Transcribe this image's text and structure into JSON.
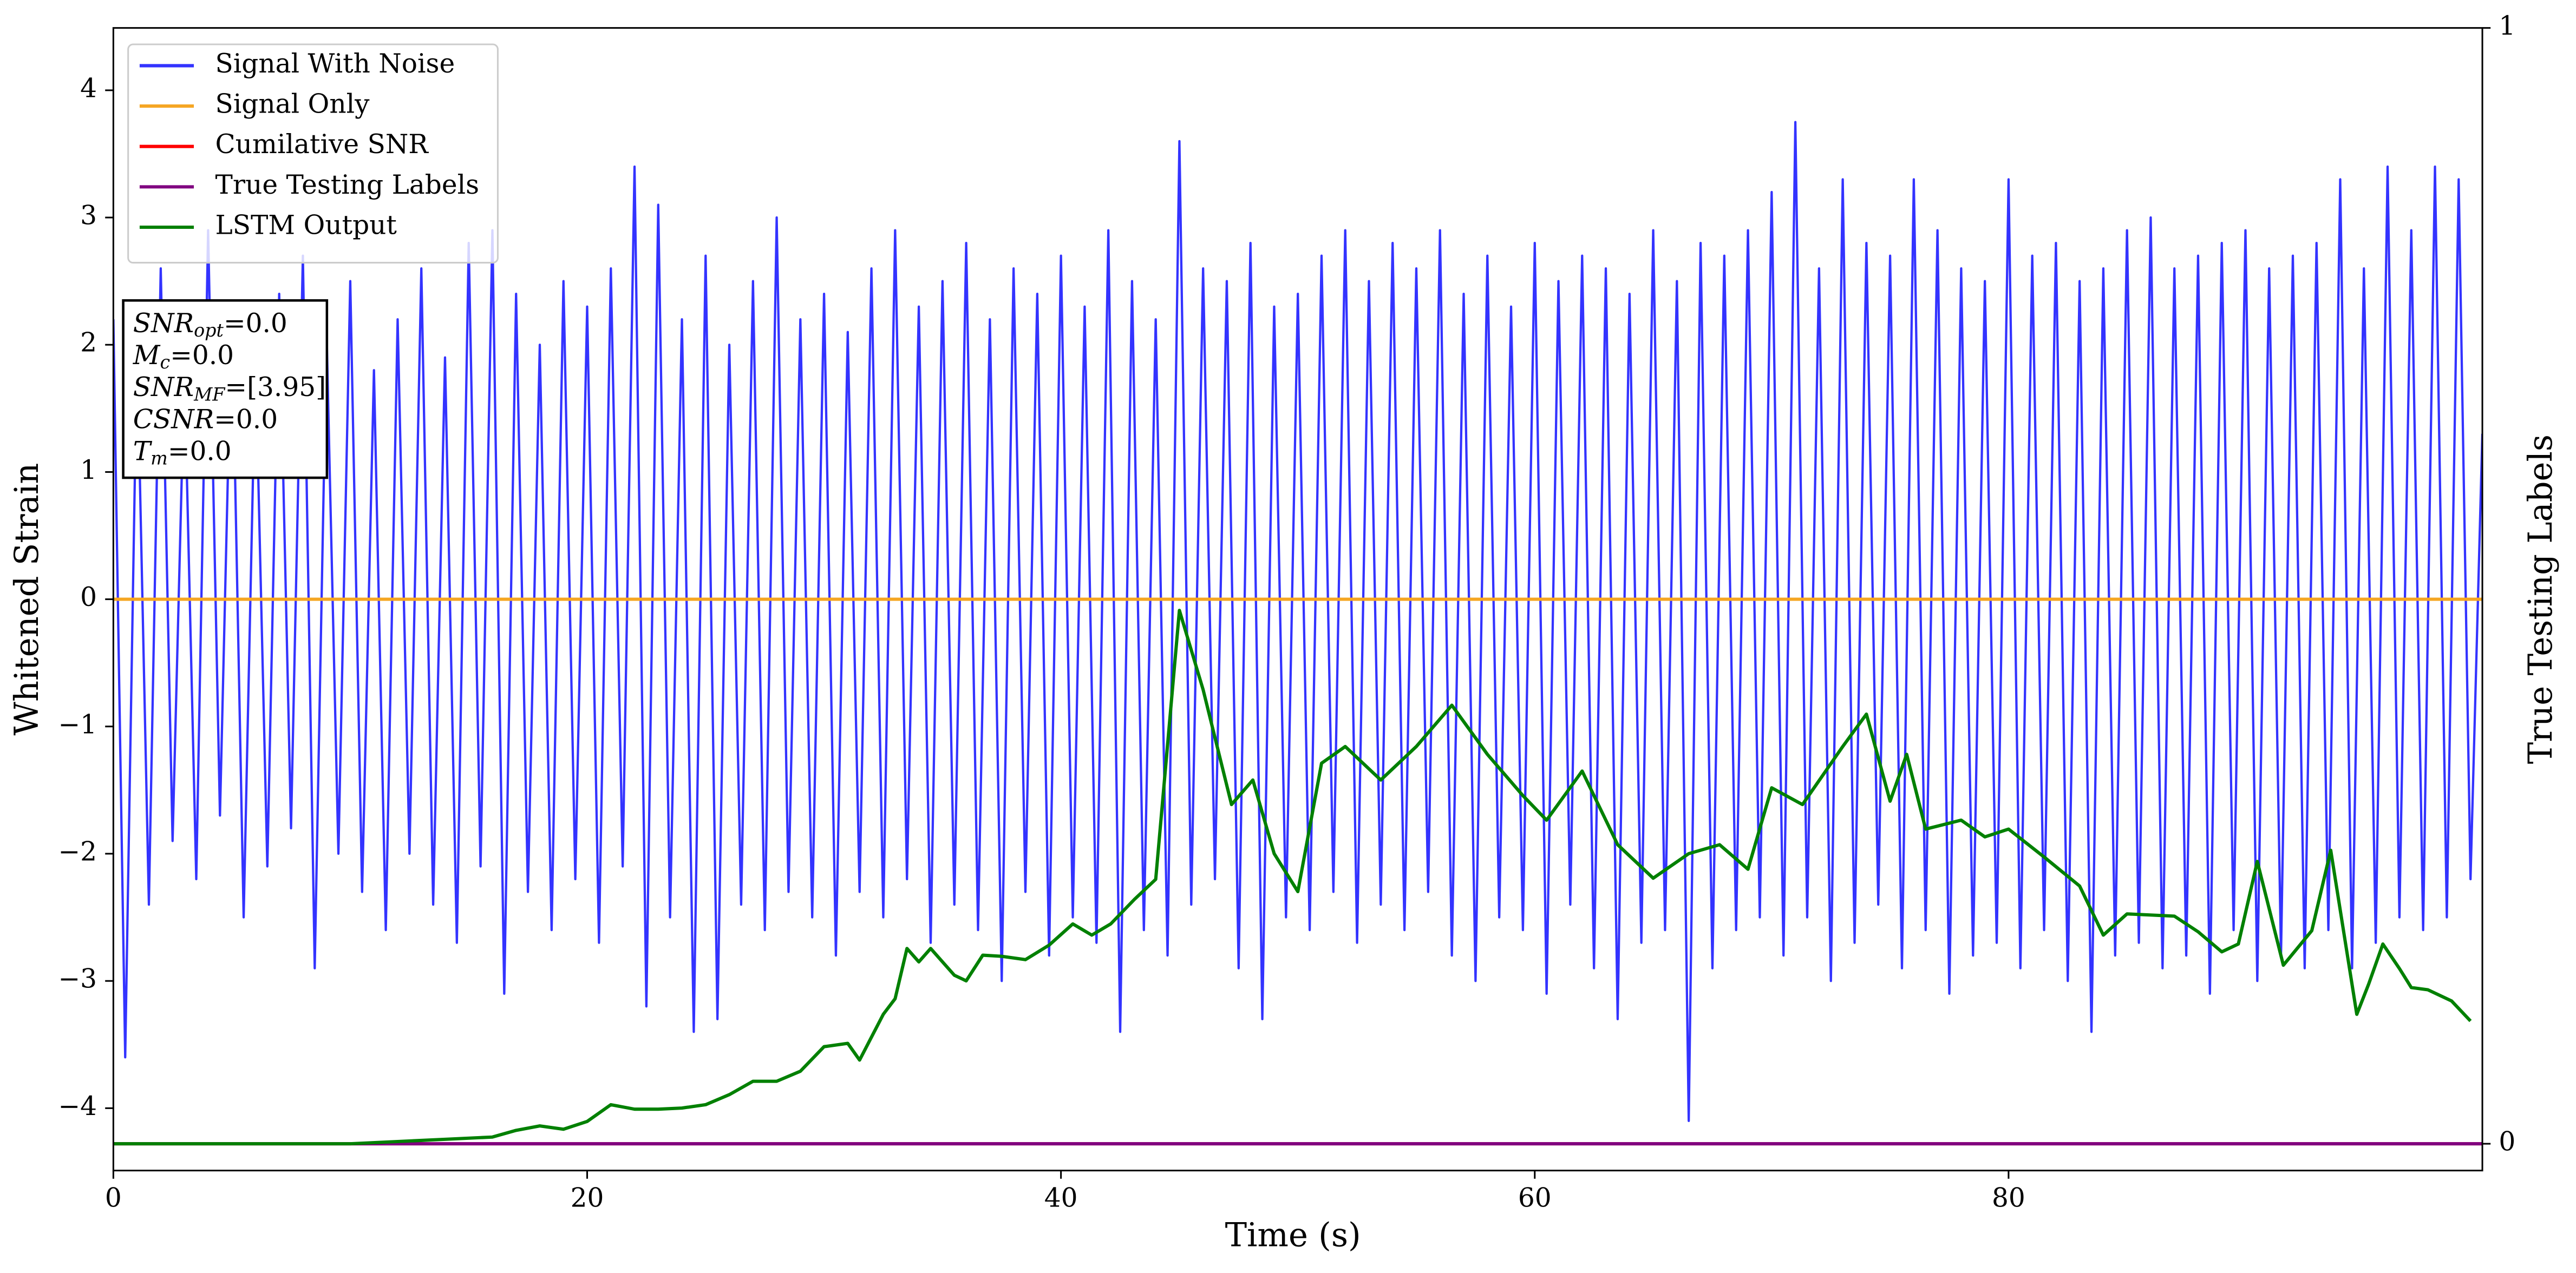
{
  "chart_data": {
    "type": "line",
    "xlabel": "Time (s)",
    "ylabel": "Whitened Strain",
    "y2label": "True Testing Labels",
    "xlim": [
      0,
      100
    ],
    "xticks": [
      0,
      20,
      40,
      60,
      80
    ],
    "ylim": [
      -4.49,
      4.49
    ],
    "yticks": [
      {
        "value": -4,
        "label": "−4"
      },
      {
        "value": -3,
        "label": "−3"
      },
      {
        "value": -2,
        "label": "−2"
      },
      {
        "value": -1,
        "label": "−1"
      },
      0,
      1,
      2,
      3,
      4
    ],
    "y2lim": [
      -0.024,
      1
    ],
    "y2ticks": [
      0,
      1
    ],
    "grid": false,
    "legend": "upper left",
    "annotation": [
      {
        "symbol": "SNR",
        "subscript": "opt",
        "text": "=0.0"
      },
      {
        "symbol": "M",
        "subscript": "c",
        "text": "=0.0"
      },
      {
        "symbol": "SNR",
        "subscript": "MF",
        "text": "=[3.95]"
      },
      {
        "symbol": "CSNR",
        "text": "=0.0"
      },
      {
        "symbol": "T",
        "subscript": "m",
        "text": "=0.0"
      }
    ],
    "series": [
      {
        "name": "Signal With Noise",
        "color": "#3333ff",
        "x": [
          0,
          0.5,
          1,
          1.5,
          2,
          2.5,
          3,
          3.5,
          4,
          4.5,
          5,
          5.5,
          6,
          6.5,
          7,
          7.5,
          8,
          8.5,
          9,
          9.5,
          10,
          10.5,
          11,
          11.5,
          12,
          12.5,
          13,
          13.5,
          14,
          14.5,
          15,
          15.5,
          16,
          16.5,
          17,
          17.5,
          18,
          18.5,
          19,
          19.5,
          20,
          20.5,
          21,
          21.5,
          22,
          22.5,
          23,
          23.5,
          24,
          24.5,
          25,
          25.5,
          26,
          26.5,
          27,
          27.5,
          28,
          28.5,
          29,
          29.5,
          30,
          30.5,
          31,
          31.5,
          32,
          32.5,
          33,
          33.5,
          34,
          34.5,
          35,
          35.5,
          36,
          36.5,
          37,
          37.5,
          38,
          38.5,
          39,
          39.5,
          40,
          40.5,
          41,
          41.5,
          42,
          42.5,
          43,
          43.5,
          44,
          44.5,
          45,
          45.5,
          46,
          46.5,
          47,
          47.5,
          48,
          48.5,
          49,
          49.5,
          50,
          50.5,
          51,
          51.5,
          52,
          52.5,
          53,
          53.5,
          54,
          54.5,
          55,
          55.5,
          56,
          56.5,
          57,
          57.5,
          58,
          58.5,
          59,
          59.5,
          60,
          60.5,
          61,
          61.5,
          62,
          62.5,
          63,
          63.5,
          64,
          64.5,
          65,
          65.5,
          66,
          66.5,
          67,
          67.5,
          68,
          68.5,
          69,
          69.5,
          70,
          70.5,
          71,
          71.5,
          72,
          72.5,
          73,
          73.5,
          74,
          74.5,
          75,
          75.5,
          76,
          76.5,
          77,
          77.5,
          78,
          78.5,
          79,
          79.5,
          80,
          80.5,
          81,
          81.5,
          82,
          82.5,
          83,
          83.5,
          84,
          84.5,
          85,
          85.5,
          86,
          86.5,
          87,
          87.5,
          88,
          88.5,
          89,
          89.5,
          90,
          90.5,
          91,
          91.5,
          92,
          92.5,
          93,
          93.5,
          94,
          94.5,
          95,
          95.5,
          96,
          96.5,
          97,
          97.5,
          98,
          98.5,
          99,
          99.5,
          100
        ],
        "values": [
          2.2,
          -3.6,
          2.0,
          -2.4,
          2.6,
          -1.9,
          1.8,
          -2.2,
          2.9,
          -1.7,
          2.3,
          -2.5,
          1.9,
          -2.1,
          2.4,
          -1.8,
          2.7,
          -2.9,
          2.1,
          -2.0,
          2.5,
          -2.3,
          1.8,
          -2.6,
          2.2,
          -2.0,
          2.6,
          -2.4,
          1.9,
          -2.7,
          2.8,
          -2.1,
          2.9,
          -3.1,
          2.4,
          -2.3,
          2.0,
          -2.6,
          2.5,
          -2.2,
          2.3,
          -2.7,
          2.6,
          -2.1,
          3.4,
          -3.2,
          3.1,
          -2.5,
          2.2,
          -3.4,
          2.7,
          -3.3,
          2.0,
          -2.4,
          2.5,
          -2.6,
          3.0,
          -2.3,
          2.2,
          -2.5,
          2.4,
          -2.8,
          2.1,
          -2.3,
          2.6,
          -2.5,
          2.9,
          -2.2,
          2.3,
          -2.7,
          2.5,
          -2.4,
          2.8,
          -2.6,
          2.2,
          -3.0,
          2.6,
          -2.3,
          2.4,
          -2.8,
          2.7,
          -2.5,
          2.3,
          -2.7,
          2.9,
          -3.4,
          2.5,
          -2.6,
          2.2,
          -2.8,
          3.6,
          -2.4,
          2.6,
          -2.2,
          2.5,
          -2.9,
          2.8,
          -3.3,
          2.3,
          -2.5,
          2.4,
          -2.6,
          2.7,
          -2.3,
          2.9,
          -2.7,
          2.5,
          -2.4,
          2.8,
          -2.6,
          2.6,
          -2.3,
          2.9,
          -2.8,
          2.4,
          -3.0,
          2.7,
          -2.5,
          2.3,
          -2.6,
          2.8,
          -3.1,
          2.5,
          -2.4,
          2.7,
          -2.9,
          2.6,
          -3.3,
          2.4,
          -2.7,
          2.9,
          -2.6,
          2.5,
          -4.1,
          2.8,
          -2.9,
          2.7,
          -2.6,
          2.9,
          -2.5,
          3.2,
          -2.8,
          3.75,
          -2.5,
          2.6,
          -3.0,
          3.3,
          -2.7,
          2.8,
          -2.4,
          2.7,
          -2.9,
          3.3,
          -2.6,
          2.9,
          -3.1,
          2.6,
          -2.8,
          2.5,
          -2.7,
          3.3,
          -2.9,
          2.7,
          -2.6,
          2.8,
          -3.0,
          2.5,
          -3.4,
          2.6,
          -2.8,
          2.9,
          -2.7,
          3.0,
          -2.9,
          2.6,
          -2.8,
          2.7,
          -3.1,
          2.8,
          -2.6,
          2.9,
          -3.0,
          2.6,
          -2.8,
          2.7,
          -2.9,
          2.8,
          -2.6,
          3.3,
          -2.9,
          2.6,
          -2.7,
          3.4,
          -2.5,
          2.9,
          -2.6,
          3.4,
          -2.5,
          3.3,
          -2.2,
          1.3
        ]
      },
      {
        "name": "Signal Only",
        "color": "#f5a623",
        "x": [
          0,
          100
        ],
        "values": [
          0,
          0
        ]
      },
      {
        "name": "Cumilative SNR",
        "color": "#ff0000",
        "axis": "y2",
        "x": [
          0,
          100
        ],
        "values": [
          0,
          0
        ]
      },
      {
        "name": "True Testing Labels",
        "color": "#800080",
        "axis": "y2",
        "x": [
          0,
          100
        ],
        "values": [
          0,
          0
        ]
      },
      {
        "name": "LSTM Output",
        "color": "#008000",
        "axis": "y2",
        "x": [
          0,
          5,
          10,
          12,
          14,
          16,
          17,
          18,
          19,
          20,
          21,
          22,
          23,
          24,
          25,
          26,
          27,
          28,
          29,
          30,
          31,
          31.5,
          32.5,
          33,
          33.5,
          34,
          34.5,
          35.5,
          36,
          36.7,
          37.5,
          38.5,
          39.5,
          40.5,
          41.3,
          42.1,
          43.1,
          44,
          45,
          46,
          47.2,
          48.1,
          49,
          50,
          51,
          52,
          53.5,
          55,
          56.5,
          58,
          59.5,
          60.5,
          62,
          63.5,
          65,
          66.5,
          67.8,
          69,
          70,
          71.3,
          73,
          74,
          75,
          75.7,
          76.5,
          78,
          79,
          80,
          81.5,
          83,
          84,
          85,
          87,
          88,
          89,
          89.7,
          90.5,
          91.6,
          92.8,
          93.6,
          94.7,
          95.2,
          95.8,
          96.5,
          97,
          97.7,
          98.7,
          99.5
        ],
        "values": [
          0,
          0,
          0,
          0.002,
          0.004,
          0.006,
          0.012,
          0.016,
          0.013,
          0.02,
          0.035,
          0.031,
          0.031,
          0.032,
          0.035,
          0.044,
          0.056,
          0.056,
          0.065,
          0.087,
          0.09,
          0.075,
          0.116,
          0.13,
          0.175,
          0.163,
          0.175,
          0.151,
          0.146,
          0.169,
          0.168,
          0.165,
          0.178,
          0.197,
          0.187,
          0.197,
          0.219,
          0.237,
          0.478,
          0.407,
          0.304,
          0.326,
          0.26,
          0.226,
          0.341,
          0.356,
          0.326,
          0.356,
          0.393,
          0.349,
          0.312,
          0.29,
          0.334,
          0.268,
          0.238,
          0.26,
          0.268,
          0.246,
          0.319,
          0.304,
          0.356,
          0.385,
          0.307,
          0.349,
          0.282,
          0.29,
          0.275,
          0.282,
          0.257,
          0.231,
          0.187,
          0.206,
          0.204,
          0.19,
          0.172,
          0.179,
          0.253,
          0.16,
          0.191,
          0.263,
          0.116,
          0.143,
          0.179,
          0.157,
          0.14,
          0.138,
          0.128,
          0.11
        ]
      }
    ]
  }
}
